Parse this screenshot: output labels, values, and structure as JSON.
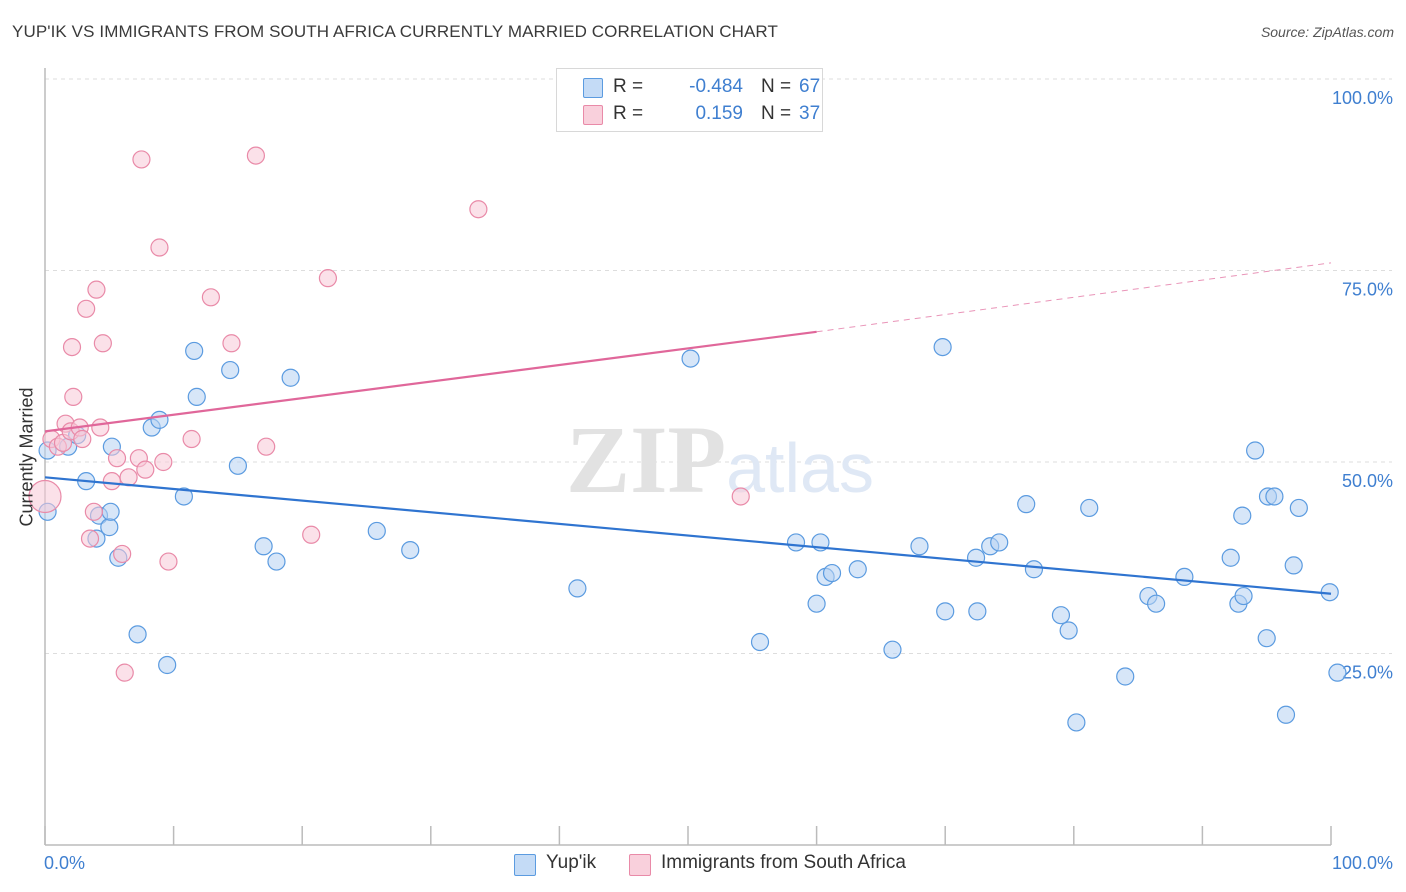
{
  "title": "YUP'IK VS IMMIGRANTS FROM SOUTH AFRICA CURRENTLY MARRIED CORRELATION CHART",
  "source": "Source: ZipAtlas.com",
  "watermark": "ZIPatlas",
  "colors": {
    "blue": "#5b9be0",
    "blue_fill": "#b7d2f3",
    "blue_line": "#2f74d0",
    "pink": "#e98aa8",
    "pink_fill": "#f8c9d7",
    "pink_line": "#e0679a",
    "axis_label": "#3f7fd0",
    "grid": "#dddddd"
  },
  "legend": {
    "rows": [
      {
        "r_label": "R =",
        "r_value": "-0.484",
        "n_label": "N =",
        "n_value": "67"
      },
      {
        "r_label": "R =",
        "r_value": "0.159",
        "n_label": "N =",
        "n_value": "37"
      }
    ]
  },
  "bottom_legend": [
    "Yup'ik",
    "Immigrants from South Africa"
  ],
  "chart_data": {
    "type": "scatter",
    "ylabel": "Currently Married",
    "xlim": [
      0,
      100
    ],
    "ylim": [
      0,
      100
    ],
    "x_tick_labels": [
      "0.0%",
      "100.0%"
    ],
    "y_tick_labels": [
      "100.0%",
      "75.0%",
      "50.0%",
      "25.0%"
    ],
    "y_ticks": [
      100,
      75,
      50,
      25
    ],
    "grid": true,
    "series": [
      {
        "name": "Yup'ik",
        "color": "#5b9be0",
        "points": [
          [
            0.2,
            43.5
          ],
          [
            0.2,
            51.5
          ],
          [
            1.8,
            52
          ],
          [
            2.5,
            53.5
          ],
          [
            3.2,
            47.5
          ],
          [
            4.2,
            43
          ],
          [
            4,
            40
          ],
          [
            5,
            41.5
          ],
          [
            5.1,
            43.5
          ],
          [
            5.2,
            52
          ],
          [
            5.7,
            37.5
          ],
          [
            7.2,
            27.5
          ],
          [
            8.3,
            54.5
          ],
          [
            8.9,
            55.5
          ],
          [
            9.5,
            23.5
          ],
          [
            10.8,
            45.5
          ],
          [
            11.6,
            64.5
          ],
          [
            11.8,
            58.5
          ],
          [
            14.4,
            62
          ],
          [
            15,
            49.5
          ],
          [
            17,
            39
          ],
          [
            18,
            37
          ],
          [
            19.1,
            61
          ],
          [
            25.8,
            41
          ],
          [
            28.4,
            38.5
          ],
          [
            41.4,
            33.5
          ],
          [
            50.2,
            63.5
          ],
          [
            55.6,
            26.5
          ],
          [
            58.4,
            39.5
          ],
          [
            60,
            31.5
          ],
          [
            60.3,
            39.5
          ],
          [
            60.7,
            35
          ],
          [
            61.2,
            35.5
          ],
          [
            63.2,
            36
          ],
          [
            65.9,
            25.5
          ],
          [
            68,
            39
          ],
          [
            70,
            30.5
          ],
          [
            69.8,
            65
          ],
          [
            72.4,
            37.5
          ],
          [
            72.5,
            30.5
          ],
          [
            73.5,
            39
          ],
          [
            74.2,
            39.5
          ],
          [
            76.3,
            44.5
          ],
          [
            76.9,
            36
          ],
          [
            79,
            30
          ],
          [
            79.6,
            28
          ],
          [
            80.2,
            16
          ],
          [
            81.2,
            44
          ],
          [
            84,
            22
          ],
          [
            85.8,
            32.5
          ],
          [
            86.4,
            31.5
          ],
          [
            88.6,
            35
          ],
          [
            92.2,
            37.5
          ],
          [
            92.8,
            31.5
          ],
          [
            93.2,
            32.5
          ],
          [
            93.1,
            43
          ],
          [
            94.1,
            51.5
          ],
          [
            95.1,
            45.5
          ],
          [
            95.6,
            45.5
          ],
          [
            95,
            27
          ],
          [
            96.5,
            17
          ],
          [
            97.1,
            36.5
          ],
          [
            97.5,
            44
          ],
          [
            99.9,
            33
          ],
          [
            100.5,
            22.5
          ]
        ],
        "trend": [
          [
            0,
            48
          ],
          [
            100,
            32.8
          ]
        ]
      },
      {
        "name": "Immigrants from South Africa",
        "color": "#e98aa8",
        "points": [
          [
            0,
            45.5
          ],
          [
            0.5,
            53
          ],
          [
            1,
            52
          ],
          [
            1.4,
            52.5
          ],
          [
            1.6,
            55
          ],
          [
            2,
            54
          ],
          [
            2.1,
            65
          ],
          [
            2.2,
            58.5
          ],
          [
            2.7,
            54.5
          ],
          [
            2.9,
            53
          ],
          [
            3.2,
            70
          ],
          [
            3.5,
            40
          ],
          [
            3.8,
            43.5
          ],
          [
            4,
            72.5
          ],
          [
            4.3,
            54.5
          ],
          [
            4.5,
            65.5
          ],
          [
            5.2,
            47.5
          ],
          [
            5.6,
            50.5
          ],
          [
            6,
            38
          ],
          [
            6.2,
            22.5
          ],
          [
            6.5,
            48
          ],
          [
            7.3,
            50.5
          ],
          [
            7.5,
            89.5
          ],
          [
            7.8,
            49
          ],
          [
            8.9,
            78
          ],
          [
            9.2,
            50
          ],
          [
            9.6,
            37
          ],
          [
            11.4,
            53
          ],
          [
            12.9,
            71.5
          ],
          [
            14.5,
            65.5
          ],
          [
            16.4,
            90
          ],
          [
            17.2,
            52
          ],
          [
            20.7,
            40.5
          ],
          [
            22,
            74
          ],
          [
            33.7,
            83
          ],
          [
            54.1,
            45.5
          ]
        ],
        "trend": [
          [
            0,
            54
          ],
          [
            60,
            67
          ]
        ],
        "trend_dashed": [
          [
            60,
            67
          ],
          [
            100,
            76
          ]
        ]
      }
    ]
  }
}
